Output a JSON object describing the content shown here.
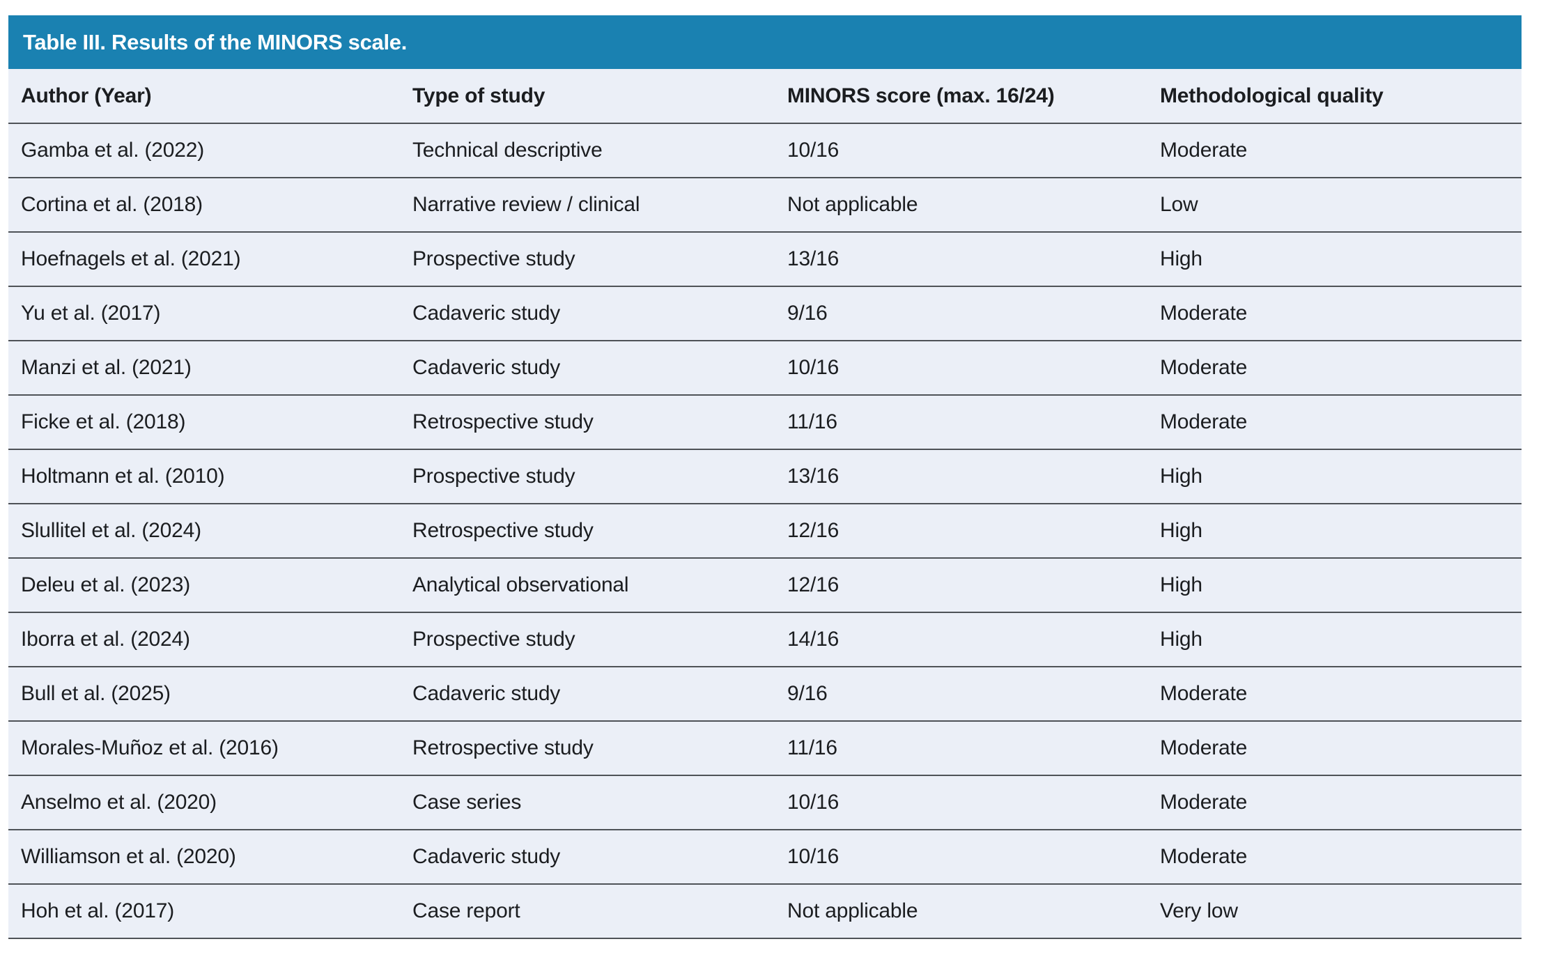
{
  "table_title": "Table III. Results of the MINORS scale.",
  "columns": [
    "Author (Year)",
    "Type of study",
    "MINORS score (max. 16/24)",
    "Methodological quality"
  ],
  "rows": [
    [
      "Gamba et al. (2022)",
      "Technical descriptive",
      "10/16",
      "Moderate"
    ],
    [
      "Cortina et al. (2018)",
      "Narrative review / clinical",
      "Not applicable",
      "Low"
    ],
    [
      "Hoefnagels et al. (2021)",
      "Prospective study",
      "13/16",
      "High"
    ],
    [
      "Yu et al. (2017)",
      "Cadaveric study",
      "9/16",
      "Moderate"
    ],
    [
      "Manzi et al. (2021)",
      "Cadaveric study",
      "10/16",
      "Moderate"
    ],
    [
      "Ficke et al. (2018)",
      "Retrospective study",
      "11/16",
      "Moderate"
    ],
    [
      "Holtmann et al. (2010)",
      "Prospective study",
      "13/16",
      "High"
    ],
    [
      "Slullitel et al. (2024)",
      "Retrospective study",
      "12/16",
      "High"
    ],
    [
      "Deleu et al. (2023)",
      "Analytical observational",
      "12/16",
      "High"
    ],
    [
      "Iborra et al. (2024)",
      "Prospective study",
      "14/16",
      "High"
    ],
    [
      "Bull et al. (2025)",
      "Cadaveric study",
      "9/16",
      "Moderate"
    ],
    [
      "Morales-Muñoz et al. (2016)",
      "Retrospective study",
      "11/16",
      "Moderate"
    ],
    [
      "Anselmo et al. (2020)",
      "Case series",
      "10/16",
      "Moderate"
    ],
    [
      "Williamson et al. (2020)",
      "Cadaveric study",
      "10/16",
      "Moderate"
    ],
    [
      "Hoh et al. (2017)",
      "Case report",
      "Not applicable",
      "Very low"
    ]
  ],
  "colors": {
    "title_bar_bg": "#1a81b1",
    "title_text": "#ffffff",
    "row_bg": "#ebeff7",
    "divider": "#4e5257",
    "text": "#1b1d20"
  }
}
